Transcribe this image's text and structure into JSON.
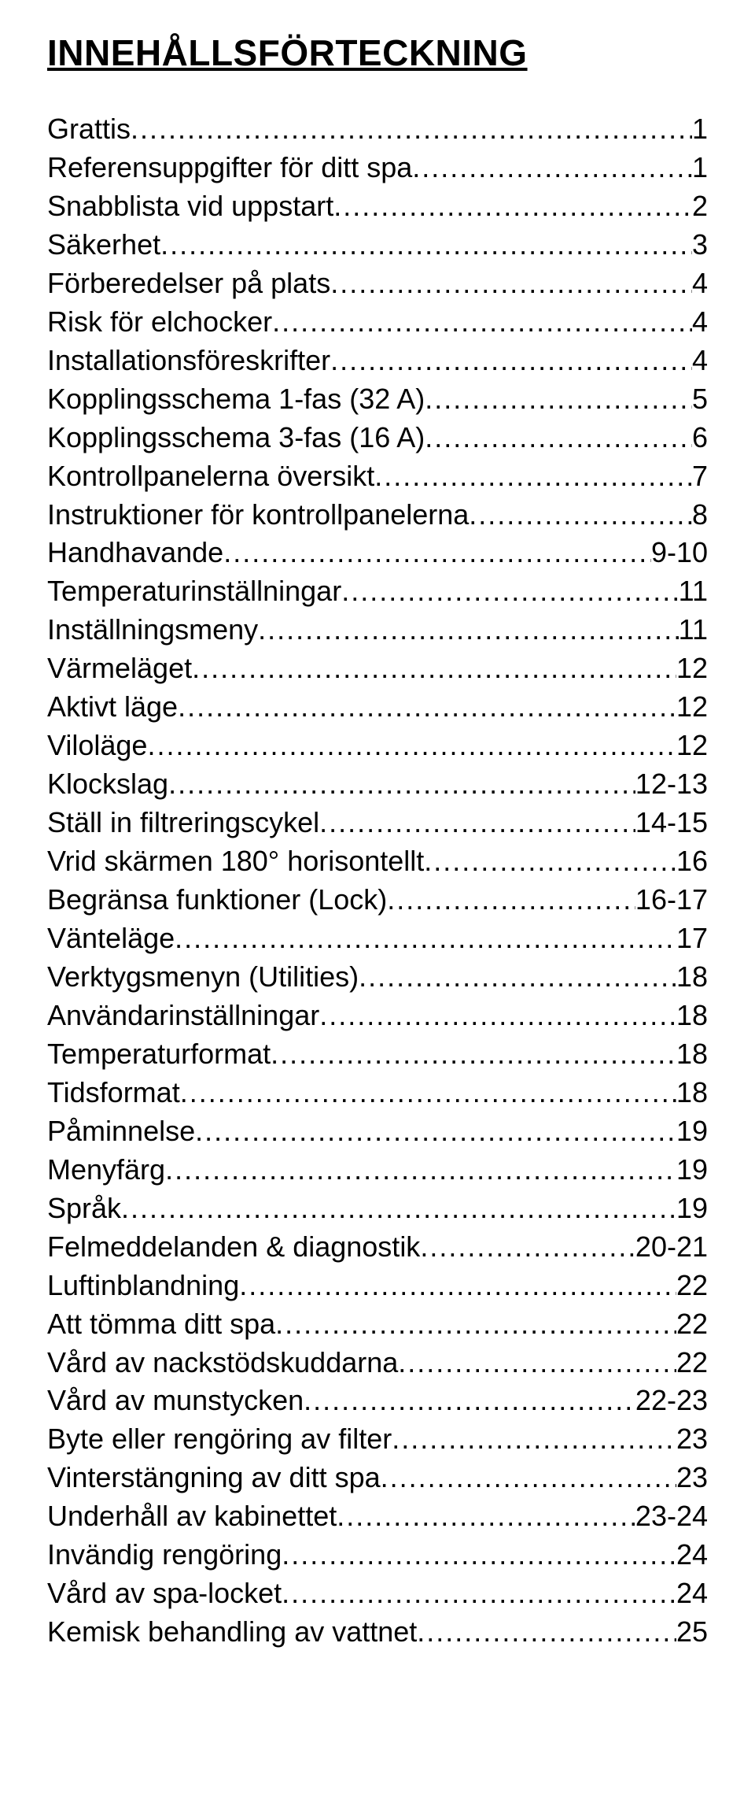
{
  "title": "INNEHÅLLSFÖRTECKNING",
  "style": {
    "title_fontsize": 46,
    "body_fontsize": 36,
    "line_height": 1.36,
    "text_color": "#000000",
    "background_color": "#ffffff",
    "font_family": "Arial"
  },
  "leader_dot": ".",
  "entries": [
    {
      "label": "Grattis",
      "page": "1"
    },
    {
      "label": "Referensuppgifter för ditt spa",
      "page": "1"
    },
    {
      "label": "Snabblista vid uppstart",
      "page": "2"
    },
    {
      "label": "Säkerhet",
      "page": "3"
    },
    {
      "label": "Förberedelser på plats",
      "page": "4"
    },
    {
      "label": "Risk för elchocker",
      "page": "4"
    },
    {
      "label": "Installationsföreskrifter",
      "page": "4"
    },
    {
      "label": "Kopplingsschema 1-fas (32 A)",
      "page": "5"
    },
    {
      "label": "Kopplingsschema 3-fas (16 A)",
      "page": "6"
    },
    {
      "label": "Kontrollpanelerna översikt",
      "page": "7"
    },
    {
      "label": "Instruktioner för kontrollpanelerna",
      "page": "8"
    },
    {
      "label": "Handhavande",
      "page": "9-10"
    },
    {
      "label": "Temperaturinställningar",
      "page": "11"
    },
    {
      "label": "Inställningsmeny",
      "page": "11"
    },
    {
      "label": "Värmeläget",
      "page": "12"
    },
    {
      "label": "Aktivt läge",
      "page": "12"
    },
    {
      "label": "Viloläge",
      "page": "12"
    },
    {
      "label": "Klockslag",
      "page": "12-13"
    },
    {
      "label": "Ställ in filtreringscykel",
      "page": "14-15"
    },
    {
      "label": "Vrid skärmen 180° horisontellt",
      "page": "16"
    },
    {
      "label": "Begränsa funktioner (Lock)",
      "page": "16-17"
    },
    {
      "label": "Vänteläge",
      "page": "17"
    },
    {
      "label": "Verktygsmenyn (Utilities)",
      "page": "18"
    },
    {
      "label": "Användarinställningar",
      "page": "18"
    },
    {
      "label": "Temperaturformat",
      "page": "18"
    },
    {
      "label": "Tidsformat",
      "page": "18"
    },
    {
      "label": "Påminnelse",
      "page": "19"
    },
    {
      "label": "Menyfärg",
      "page": "19"
    },
    {
      "label": "Språk",
      "page": "19"
    },
    {
      "label": "Felmeddelanden & diagnostik",
      "page": "20-21"
    },
    {
      "label": "Luftinblandning",
      "page": "22"
    },
    {
      "label": "Att tömma ditt spa",
      "page": "22"
    },
    {
      "label": "Vård av nackstödskuddarna",
      "page": "22"
    },
    {
      "label": "Vård av munstycken",
      "page": "22-23"
    },
    {
      "label": "Byte eller rengöring av filter",
      "page": "23"
    },
    {
      "label": "Vinterstängning av ditt spa",
      "page": "23"
    },
    {
      "label": "Underhåll av kabinettet",
      "page": "23-24"
    },
    {
      "label": "Invändig rengöring",
      "page": "24"
    },
    {
      "label": "Vård av spa-locket",
      "page": "24"
    },
    {
      "label": "Kemisk behandling av vattnet",
      "page": "25"
    }
  ]
}
